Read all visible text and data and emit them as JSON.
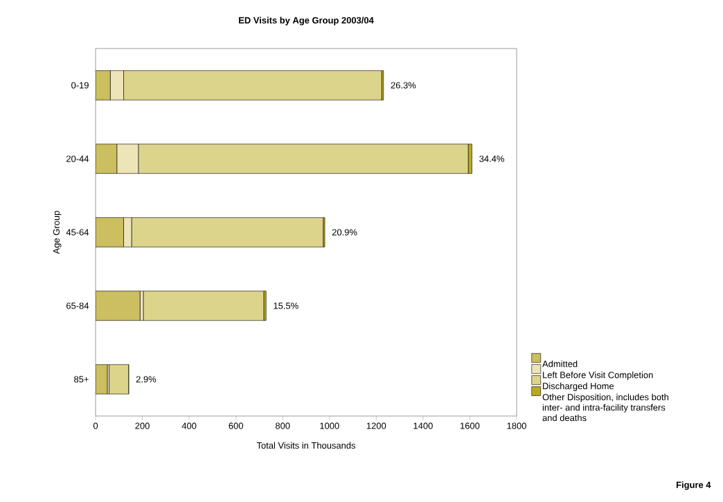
{
  "chart_data": {
    "type": "bar",
    "orientation": "horizontal",
    "stacked": true,
    "title": "ED Visits by Age Group 2003/04",
    "xlabel": "Total Visits in Thousands",
    "ylabel": "Age Group",
    "categories": [
      "0-19",
      "20-44",
      "45-64",
      "65-84",
      "85+"
    ],
    "series": [
      {
        "name": "Admitted",
        "color": "#cbbf5f",
        "values": [
          63,
          91,
          120,
          190,
          50
        ]
      },
      {
        "name": "Left Before Visit Completion",
        "color": "#ede5b8",
        "values": [
          57,
          92,
          34,
          14,
          8
        ]
      },
      {
        "name": "Discharged Home",
        "color": "#ddd48c",
        "values": [
          1103,
          1410,
          819,
          515,
          83
        ]
      },
      {
        "name": "Other Disposition, includes both inter- and intra-facility transfers and deaths",
        "color": "#b8aa22",
        "values": [
          8,
          16,
          7,
          10,
          1
        ]
      }
    ],
    "xlim": [
      0,
      1800
    ],
    "xticks": [
      0,
      200,
      400,
      600,
      800,
      1000,
      1200,
      1400,
      1600,
      1800
    ],
    "legend": "right",
    "annotations": [
      {
        "text": "26.3%",
        "x": 1231,
        "y": "0-19"
      },
      {
        "text": "34.4%",
        "x": 1609,
        "y": "20-44"
      },
      {
        "text": "20.9%",
        "x": 980,
        "y": "45-64"
      },
      {
        "text": "15.5%",
        "x": 729,
        "y": "65-84"
      },
      {
        "text": "2.9%",
        "x": 142,
        "y": "85+"
      },
      "Figure 4"
    ]
  }
}
